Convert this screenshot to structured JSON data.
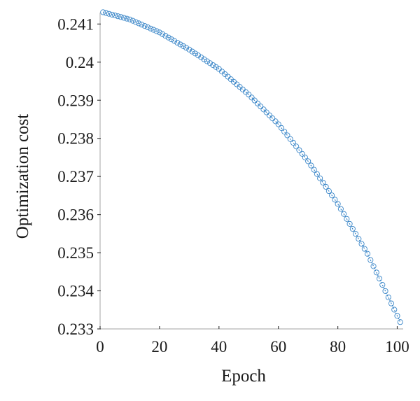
{
  "chart_data": {
    "type": "line",
    "title": "",
    "xlabel": "Epoch",
    "ylabel": "Optimization cost",
    "xlim": [
      0,
      102
    ],
    "ylim": [
      0.233,
      0.2413
    ],
    "xticks": [
      0,
      20,
      40,
      60,
      80,
      100
    ],
    "xtick_labels": [
      "0",
      "20",
      "40",
      "60",
      "80",
      "100"
    ],
    "yticks": [
      0.233,
      0.234,
      0.235,
      0.236,
      0.237,
      0.238,
      0.239,
      0.24,
      0.241
    ],
    "ytick_labels": [
      "0.233",
      "0.234",
      "0.235",
      "0.236",
      "0.237",
      "0.238",
      "0.239",
      "0.24",
      "0.241"
    ],
    "grid": false,
    "series": [
      {
        "marker": "circle-open",
        "line_style": "dotted",
        "color": "#3a86c8",
        "x_start": 1,
        "x_end": 101,
        "x_step": 1,
        "x": [
          1,
          10,
          20,
          30,
          40,
          50,
          60,
          70,
          80,
          90,
          101
        ],
        "y": [
          0.24131,
          0.24112,
          0.24078,
          0.24033,
          0.23982,
          0.23915,
          0.23837,
          0.2374,
          0.23628,
          0.23497,
          0.23318
        ]
      }
    ]
  }
}
